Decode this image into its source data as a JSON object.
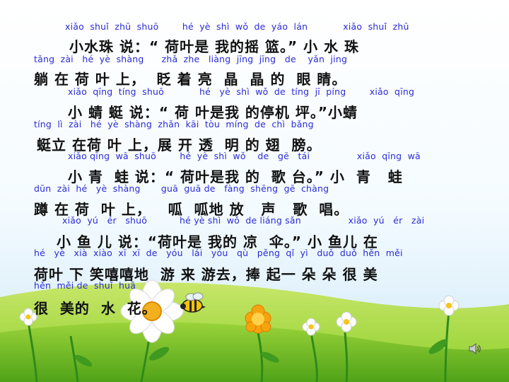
{
  "colors": {
    "sky_top": "#ffffff",
    "sky_bottom": "#cfe8f8",
    "grass_light": "#b7dd3a",
    "grass_dark": "#5fae1e",
    "pinyin": "#2b2bd6",
    "hanzi": "#111111"
  },
  "icons": {
    "speaker": "speaker-icon",
    "bee": "bee-icon",
    "flowers": "flower-icon"
  },
  "lines": [
    {
      "pinyin": "xiǎo  shuǐ  zhū  shuō        hé  yè  shì  wǒ  de  yáo  lán            xiǎo  shuǐ  zhū",
      "hanzi": null
    },
    {
      "pinyin": null,
      "hanzi": "小水珠 说：“ 荷叶是 我的摇 篮。” 小 水 珠"
    },
    {
      "pinyin": "tǎng  zài   hé  yè  shàng      zhǎ  zhe   liàng  jīng  jīng   de    yǎn  jing",
      "hanzi": null
    },
    {
      "pinyin": null,
      "hanzi": "躺 在 荷 叶 上，  眨 着 亮  晶  晶 的  眼 睛。"
    },
    {
      "pinyin": "xiǎo  qīng  tíng  shuō            hé   yè  shì  wǒ  de  tíng  jī  píng        xiǎo  qīng",
      "hanzi": null
    },
    {
      "pinyin": null,
      "hanzi": "小 蜻 蜓 说：“ 荷 叶是我 的停机 坪。”小蜻"
    },
    {
      "pinyin": "tíng  lì  zài   hé  yè  shàng  zhǎn  kāi  tòu  míng  de  chì  bǎng",
      "hanzi": null
    },
    {
      "pinyin": null,
      "hanzi": "蜓立 在荷 叶 上，展 开 透  明 的 翅  膀。"
    },
    {
      "pinyin": "xiǎo qīng  wā  shuō        hé  yè  shì  wǒ    de   gē   tái                xiǎo  qīng  wā",
      "hanzi": null
    },
    {
      "pinyin": null,
      "hanzi": "小 青  蛙 说：“ 荷叶是我 的  歌 台。” 小  青   蛙"
    },
    {
      "pinyin": "dūn  zài  hé   yè  shàng       guā  guā de   fàng  shēng  gē  chàng",
      "hanzi": null
    },
    {
      "pinyin": null,
      "hanzi": "蹲 在 荷  叶 上，   呱  呱地 放   声   歌  唱。"
    },
    {
      "pinyin": "xiǎo  yú   ér   shuō           hé yè shì  wǒ  de liáng sǎn                xiǎo  yú   ér   zài",
      "hanzi": null
    },
    {
      "pinyin": null,
      "hanzi": "小 鱼 儿 说：“荷叶是 我的 凉  伞。” 小 鱼儿 在"
    },
    {
      "pinyin": "hé   yè   xià  xiào  xī  xī  de   yóu   lái   yóu   qù   pěng  qǐ  yì   duǒ  duǒ  hěn  měi",
      "hanzi": null
    },
    {
      "pinyin": null,
      "hanzi": "荷叶 下 笑嘻嘻地  游 来 游去，捧 起一 朵 朵 很 美"
    },
    {
      "pinyin": "hěn  měi de  shuǐ  huā",
      "hanzi": null
    },
    {
      "pinyin": null,
      "hanzi": "很  美的  水  花。"
    }
  ]
}
